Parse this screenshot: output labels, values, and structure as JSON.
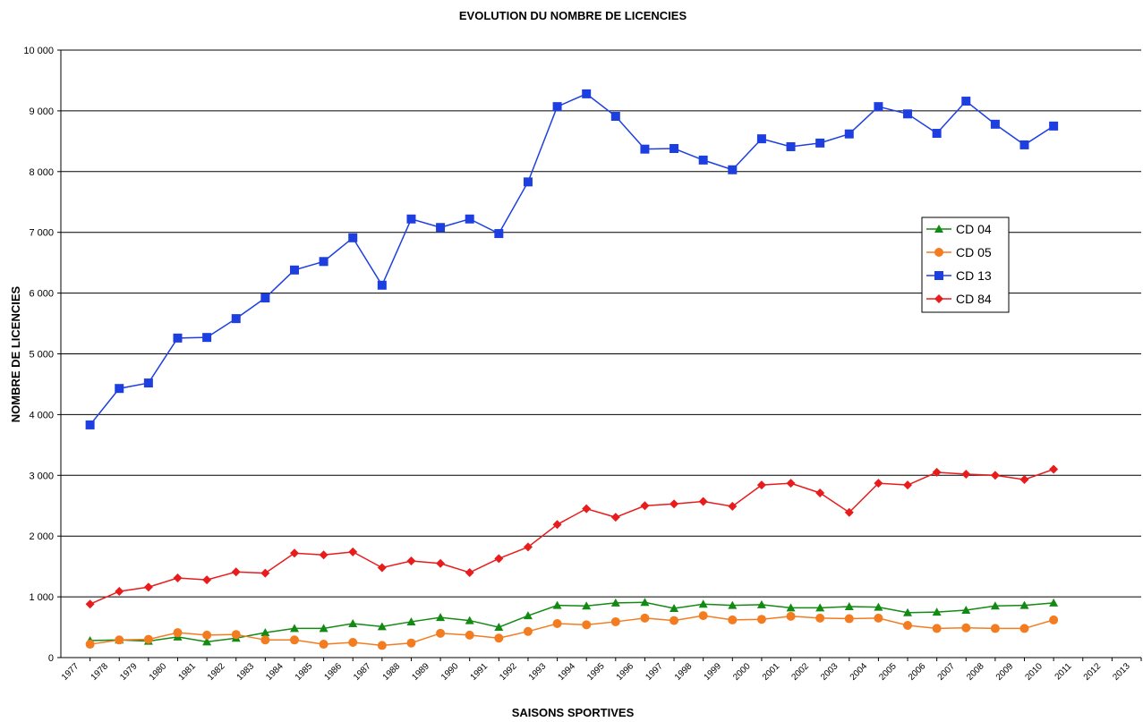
{
  "chart_data": {
    "type": "line",
    "title": "EVOLUTION DU NOMBRE DE LICENCIES",
    "x_label": "SAISONS SPORTIVES",
    "y_label": "NOMBRE DE LICENCIES",
    "categories": [
      "1977",
      "1978",
      "1979",
      "1980",
      "1981",
      "1982",
      "1983",
      "1984",
      "1985",
      "1986",
      "1987",
      "1988",
      "1989",
      "1990",
      "1991",
      "1992",
      "1993",
      "1994",
      "1995",
      "1996",
      "1997",
      "1998",
      "1999",
      "2000",
      "2001",
      "2002",
      "2003",
      "2004",
      "2005",
      "2006",
      "2007",
      "2008",
      "2009",
      "2010",
      "2011",
      "2012",
      "2013"
    ],
    "ylim": [
      0,
      10000
    ],
    "yticks": [
      0,
      {
        "value": 1000,
        "label": "1 000"
      },
      {
        "value": 2000,
        "label": "2 000"
      },
      {
        "value": 3000,
        "label": "3 000"
      },
      {
        "value": 4000,
        "label": "4 000"
      },
      {
        "value": 5000,
        "label": "5 000"
      },
      {
        "value": 6000,
        "label": "6 000"
      },
      {
        "value": 7000,
        "label": "7 000"
      },
      {
        "value": 8000,
        "label": "8 000"
      },
      {
        "value": 9000,
        "label": "9 000"
      },
      {
        "value": 10000,
        "label": "10 000"
      }
    ],
    "grid": true,
    "legend_position": "right",
    "series": [
      {
        "name": "CD 04",
        "color": "#138a13",
        "marker": "triangle",
        "values": [
          280,
          290,
          270,
          340,
          260,
          320,
          410,
          480,
          480,
          560,
          510,
          590,
          660,
          610,
          500,
          690,
          860,
          850,
          900,
          910,
          810,
          880,
          860,
          870,
          820,
          820,
          840,
          830,
          740,
          750,
          780,
          850,
          860,
          900,
          null,
          null,
          null
        ]
      },
      {
        "name": "CD 05",
        "color": "#f47c20",
        "marker": "circle",
        "values": [
          220,
          290,
          300,
          410,
          370,
          380,
          290,
          290,
          220,
          250,
          200,
          240,
          400,
          370,
          320,
          430,
          560,
          540,
          590,
          650,
          610,
          690,
          620,
          630,
          680,
          650,
          640,
          650,
          530,
          480,
          490,
          480,
          480,
          620,
          null,
          null,
          null
        ]
      },
      {
        "name": "CD 13",
        "color": "#1e3fe0",
        "marker": "square",
        "values": [
          3830,
          4430,
          4520,
          5260,
          5270,
          5580,
          5920,
          6380,
          6520,
          6910,
          6130,
          7220,
          7080,
          7220,
          6980,
          7830,
          9070,
          9280,
          8910,
          8370,
          8380,
          8190,
          8030,
          8540,
          8410,
          8470,
          8620,
          9070,
          8950,
          8630,
          9160,
          8780,
          8440,
          8750,
          null,
          null,
          null
        ]
      },
      {
        "name": "CD 84",
        "color": "#e81c1c",
        "marker": "diamond",
        "values": [
          880,
          1090,
          1160,
          1310,
          1280,
          1410,
          1390,
          1720,
          1690,
          1740,
          1480,
          1590,
          1550,
          1400,
          1630,
          1820,
          2190,
          2450,
          2310,
          2500,
          2530,
          2570,
          2490,
          2840,
          2870,
          2710,
          2390,
          2870,
          2840,
          3050,
          3020,
          3000,
          2930,
          3100,
          null,
          null,
          null
        ]
      }
    ]
  }
}
